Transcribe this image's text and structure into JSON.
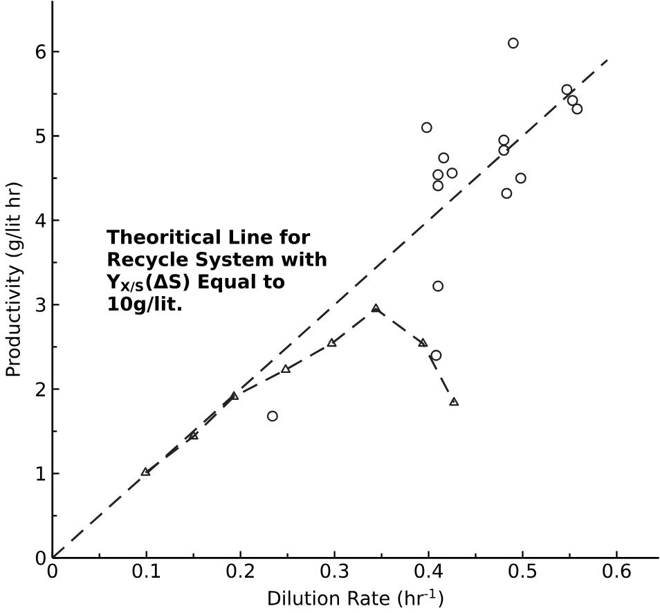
{
  "chart_data": {
    "type": "scatter",
    "xlabel": "Dilution Rate (hr$^{-1}$)",
    "ylabel": "Productivity (g/lit hr)",
    "xlim": [
      0,
      0.645
    ],
    "ylim": [
      0,
      6.6
    ],
    "xticks": [
      0,
      0.1,
      0.2,
      0.3,
      0.4,
      0.5,
      0.6
    ],
    "yticks": [
      0,
      1,
      2,
      3,
      4,
      5,
      6
    ],
    "annotations": [
      "Theoritical Line for Recycle System with Y$_{X/S}$(ΔS) Equal to 10g/lit."
    ],
    "series": [
      {
        "marker": "circle",
        "color": "#222222",
        "x": [
          0.398,
          0.416,
          0.41,
          0.425,
          0.41,
          0.48,
          0.48,
          0.483,
          0.498,
          0.49,
          0.547,
          0.553,
          0.558,
          0.41,
          0.408,
          0.234
        ],
        "values": [
          5.1,
          4.74,
          4.54,
          4.56,
          4.41,
          4.95,
          4.83,
          4.32,
          4.5,
          6.1,
          5.55,
          5.42,
          5.32,
          3.22,
          2.4,
          1.68
        ]
      },
      {
        "type": "line",
        "marker": "triangle",
        "line_style": "dashed",
        "color": "#222222",
        "x": [
          0.099,
          0.15,
          0.193,
          0.248,
          0.297,
          0.344,
          0.394,
          0.427
        ],
        "values": [
          1.01,
          1.44,
          1.91,
          2.23,
          2.54,
          2.95,
          2.54,
          1.84
        ]
      },
      {
        "type": "line",
        "marker": "none",
        "line_style": "dashed",
        "color": "#222222",
        "x": [
          0,
          0.59
        ],
        "values": [
          0,
          5.9
        ]
      }
    ]
  }
}
